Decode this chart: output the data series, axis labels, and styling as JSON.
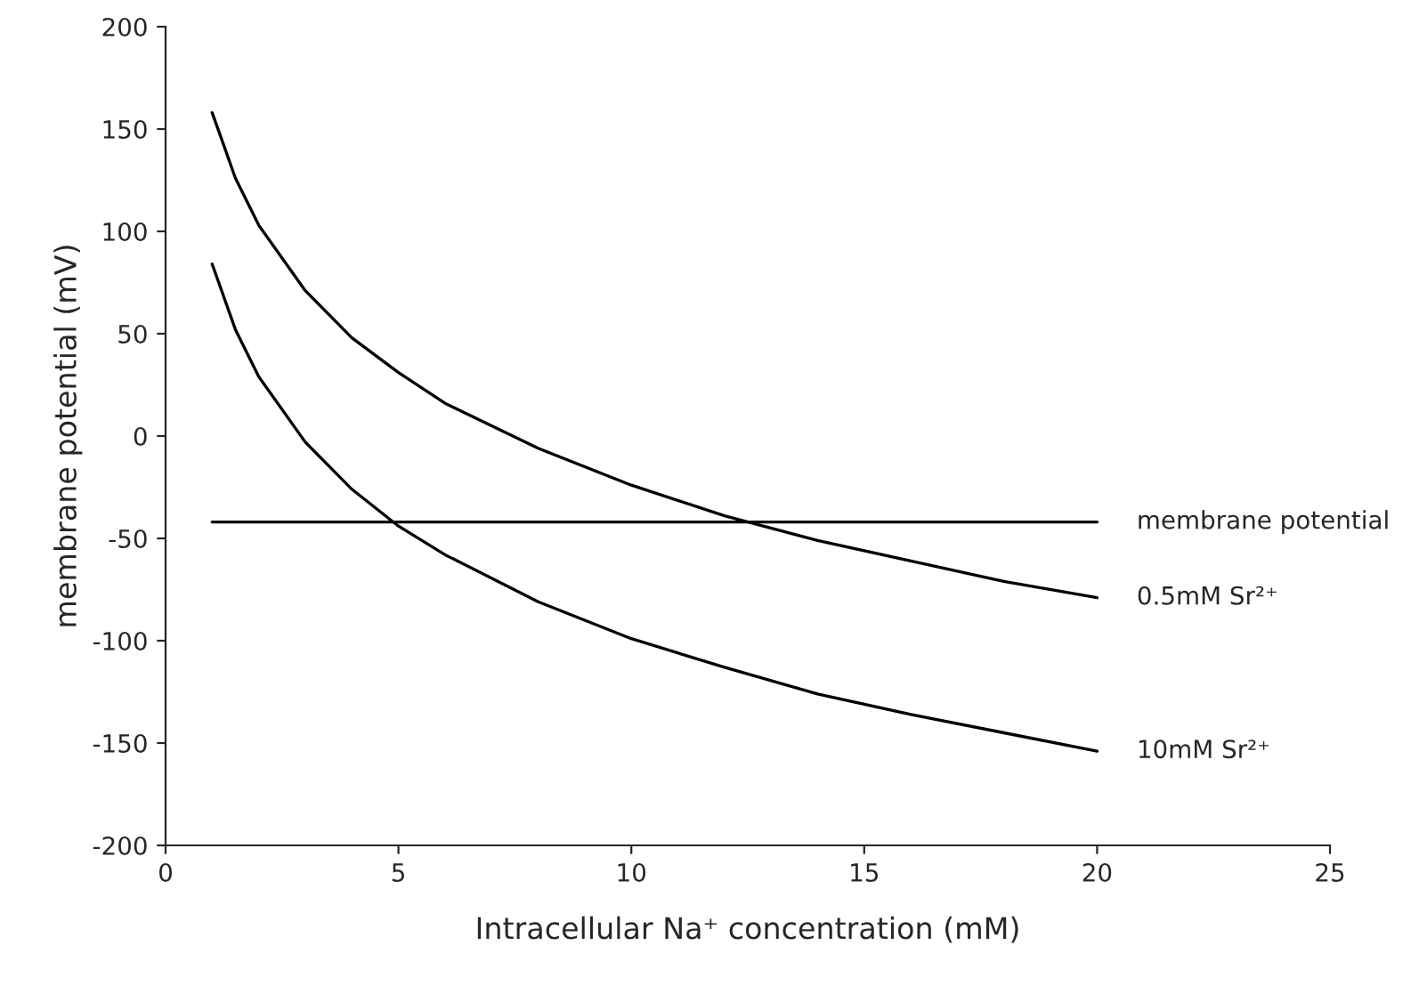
{
  "chart_data": {
    "type": "line",
    "xlabel": "Intracellular Na⁺ concentration (mM)",
    "ylabel": "membrane potential (mV)",
    "xlim": [
      0,
      25
    ],
    "xticks": [
      0,
      5,
      10,
      15,
      20,
      25
    ],
    "ylim": [
      -200,
      200
    ],
    "yticks": [
      -200,
      -150,
      -100,
      -50,
      0,
      50,
      100,
      150,
      200
    ],
    "grid": false,
    "legend": false,
    "marker": "none",
    "line_style": "solid",
    "series": [
      {
        "name": "membrane potential",
        "color": "#000000",
        "x": [
          1,
          20
        ],
        "values": [
          -42,
          -42
        ]
      },
      {
        "name": "0.5mM Sr²⁺",
        "color": "#000000",
        "x": [
          1,
          1.5,
          2,
          3,
          4,
          5,
          6,
          8,
          10,
          12,
          14,
          16,
          18,
          20
        ],
        "values": [
          158,
          126,
          103,
          71,
          48,
          31,
          16,
          -6,
          -24,
          -39,
          -51,
          -61,
          -71,
          -79
        ]
      },
      {
        "name": "10mM Sr²⁺",
        "color": "#000000",
        "x": [
          1,
          1.5,
          2,
          3,
          4,
          5,
          6,
          8,
          10,
          12,
          14,
          16,
          18,
          20
        ],
        "values": [
          84,
          52,
          29,
          -3,
          -26,
          -44,
          -58,
          -81,
          -99,
          -113,
          -126,
          -136,
          -145,
          -154
        ]
      }
    ]
  }
}
